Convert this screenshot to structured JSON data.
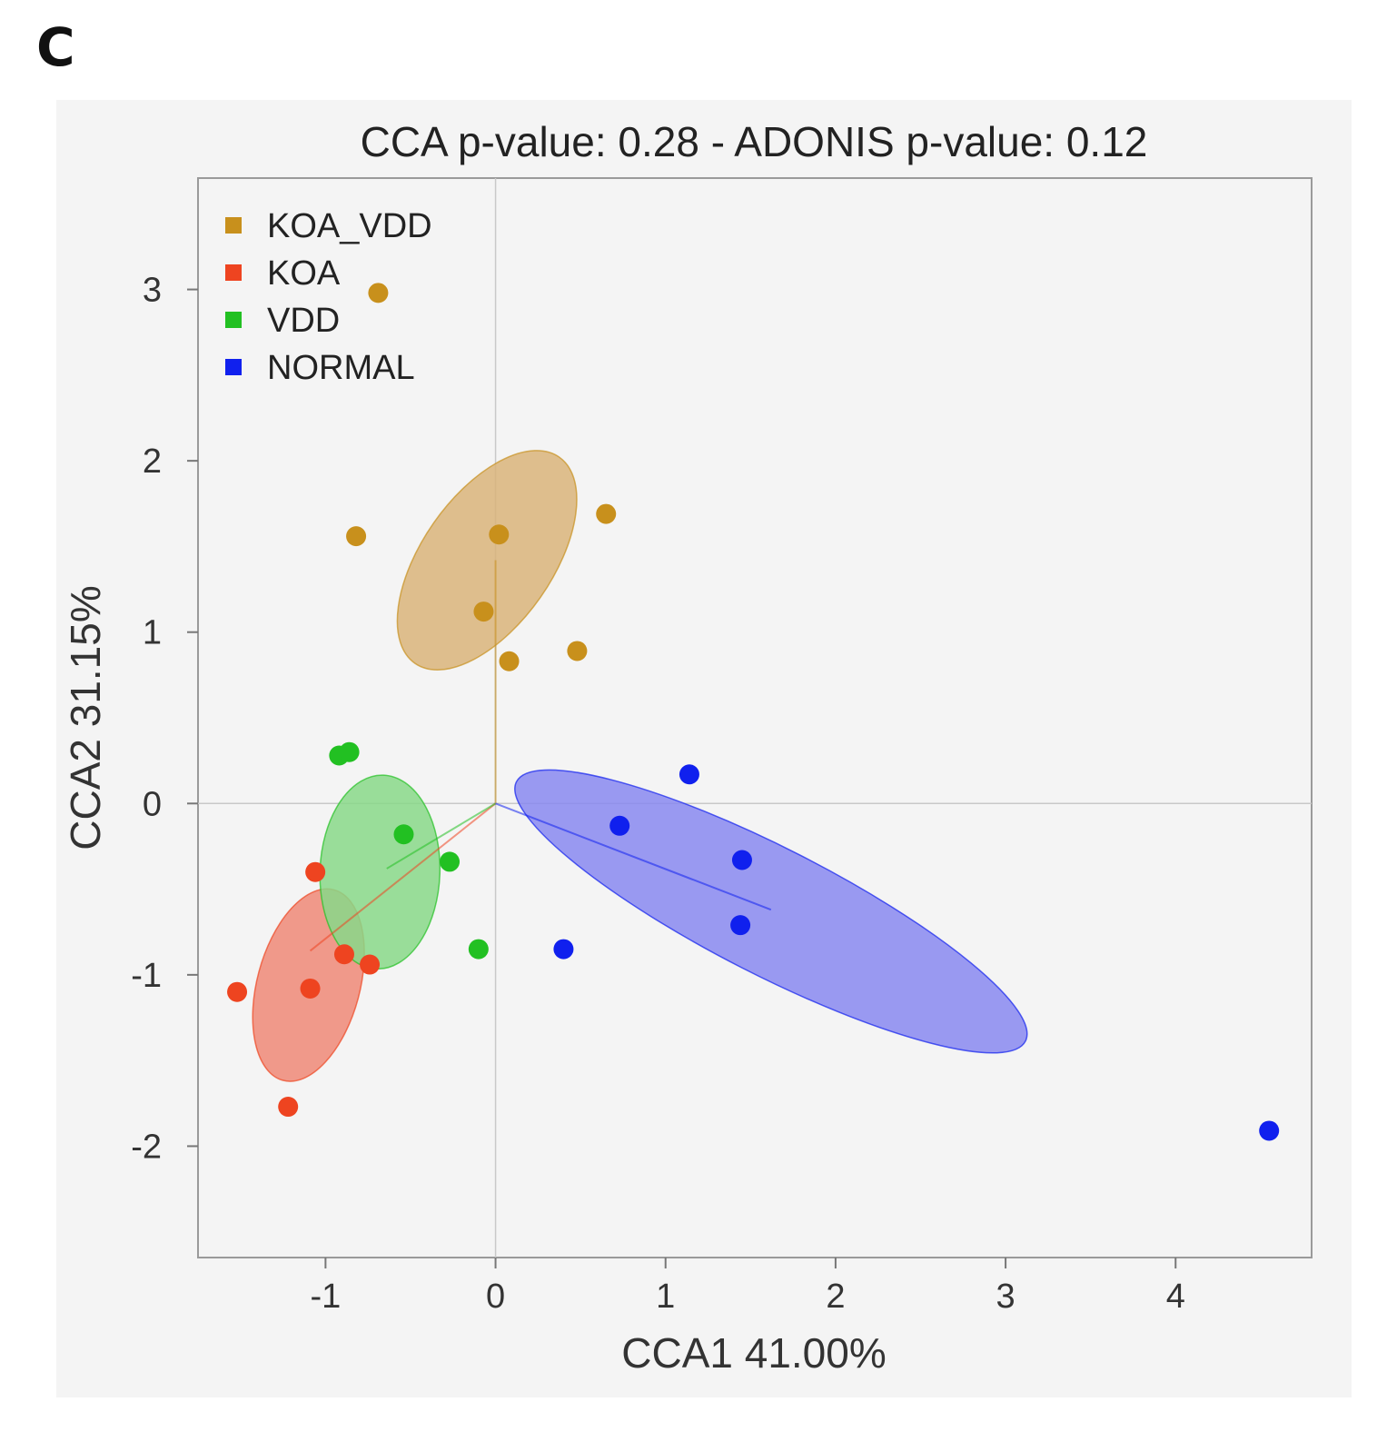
{
  "panel_label": "C",
  "chart_data": {
    "type": "scatter",
    "title": "CCA p-value: 0.28 - ADONIS p-value: 0.12",
    "xlabel": "CCA1 41.00%",
    "ylabel": "CCA2 31.15%",
    "xlim": [
      -1.75,
      4.8
    ],
    "ylim": [
      -2.65,
      3.65
    ],
    "xticks": [
      -1,
      0,
      1,
      2,
      3,
      4
    ],
    "yticks": [
      -2,
      -1,
      0,
      1,
      2,
      3
    ],
    "grid": false,
    "zero_lines": true,
    "legend_position": "top-left",
    "series": [
      {
        "name": "KOA_VDD",
        "color": "#C8901C",
        "fill": "#D9B47A",
        "points": [
          [
            -0.69,
            2.98
          ],
          [
            -0.82,
            1.56
          ],
          [
            0.02,
            1.57
          ],
          [
            0.65,
            1.69
          ],
          [
            -0.07,
            1.12
          ],
          [
            0.08,
            0.83
          ],
          [
            0.48,
            0.89
          ]
        ],
        "centroid": [
          0.0,
          1.42
        ],
        "ellipse": {
          "cx": -0.05,
          "cy": 1.42,
          "rx": 0.74,
          "ry": 0.38,
          "angle_deg": -55
        }
      },
      {
        "name": "KOA",
        "color": "#EE4420",
        "fill": "#EE8877",
        "points": [
          [
            -1.06,
            -0.4
          ],
          [
            -0.89,
            -0.88
          ],
          [
            -0.74,
            -0.94
          ],
          [
            -1.09,
            -1.08
          ],
          [
            -1.52,
            -1.1
          ],
          [
            -1.22,
            -1.77
          ]
        ],
        "centroid": [
          -1.09,
          -0.86
        ],
        "ellipse": {
          "cx": -1.1,
          "cy": -1.06,
          "rx": 0.58,
          "ry": 0.3,
          "angle_deg": -75
        }
      },
      {
        "name": "VDD",
        "color": "#22C022",
        "fill": "#88D888",
        "points": [
          [
            -0.92,
            0.28
          ],
          [
            -0.86,
            0.3
          ],
          [
            -0.54,
            -0.18
          ],
          [
            -0.27,
            -0.34
          ],
          [
            -0.1,
            -0.85
          ]
        ],
        "centroid": [
          -0.64,
          -0.38
        ],
        "ellipse": {
          "cx": -0.68,
          "cy": -0.4,
          "rx": 0.57,
          "ry": 0.35,
          "angle_deg": -88
        }
      },
      {
        "name": "NORMAL",
        "color": "#1020EE",
        "fill": "#8888F0",
        "points": [
          [
            1.14,
            0.17
          ],
          [
            0.73,
            -0.13
          ],
          [
            1.45,
            -0.33
          ],
          [
            1.44,
            -0.71
          ],
          [
            0.4,
            -0.85
          ],
          [
            4.55,
            -1.91
          ]
        ],
        "centroid": [
          1.62,
          -0.62
        ],
        "ellipse": {
          "cx": 1.62,
          "cy": -0.63,
          "rx": 1.68,
          "ry": 0.37,
          "angle_deg": 27
        }
      }
    ]
  }
}
